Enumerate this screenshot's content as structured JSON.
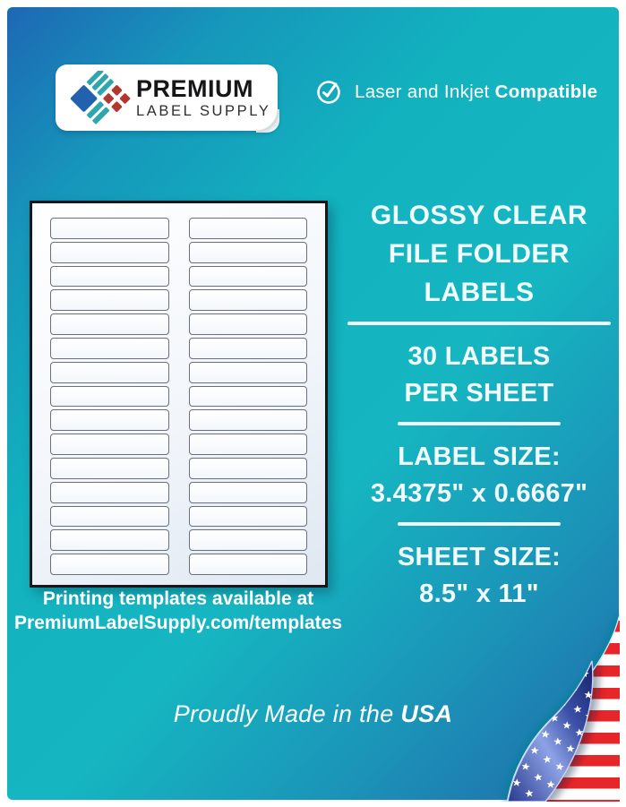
{
  "background": {
    "accent_teal": "#12b2bf",
    "accent_blue": "#1d68b4"
  },
  "logo_card": {
    "icon": "premium-label-supply-logo",
    "brand_line1": "PREMIUM",
    "brand_line2": "LABEL SUPPLY",
    "logo_colors": {
      "blue": "#2161ae",
      "teal": "#2ea6ad",
      "red": "#b0382d"
    }
  },
  "compatibility": {
    "icon": "check-circle-icon",
    "text_regular": "Laser and Inkjet ",
    "text_bold": "Compatible"
  },
  "sheet": {
    "columns": 2,
    "rows_per_column": 15,
    "total_labels": 30,
    "caption_line1": "Printing templates available at",
    "caption_line2": "PremiumLabelSupply.com/templates"
  },
  "info_panel": {
    "title_lines": [
      "GLOSSY CLEAR",
      "FILE FOLDER",
      "LABELS"
    ],
    "blocks": [
      {
        "lines": [
          "30 LABELS",
          "PER SHEET"
        ]
      },
      {
        "lines": [
          "LABEL SIZE:",
          "3.4375\" x 0.6667\""
        ]
      },
      {
        "lines": [
          "SHEET SIZE:",
          "8.5\" x 11\""
        ]
      }
    ],
    "text_color": "#f0fcfd"
  },
  "footer": {
    "made_in_regular": "Proudly Made in the ",
    "made_in_bold": "USA"
  },
  "flag": {
    "icon": "us-flag-page-curl",
    "red": "#e62629",
    "white": "#ffffff",
    "blue_dark": "#1b2873",
    "blue_light": "#8da2e6"
  }
}
